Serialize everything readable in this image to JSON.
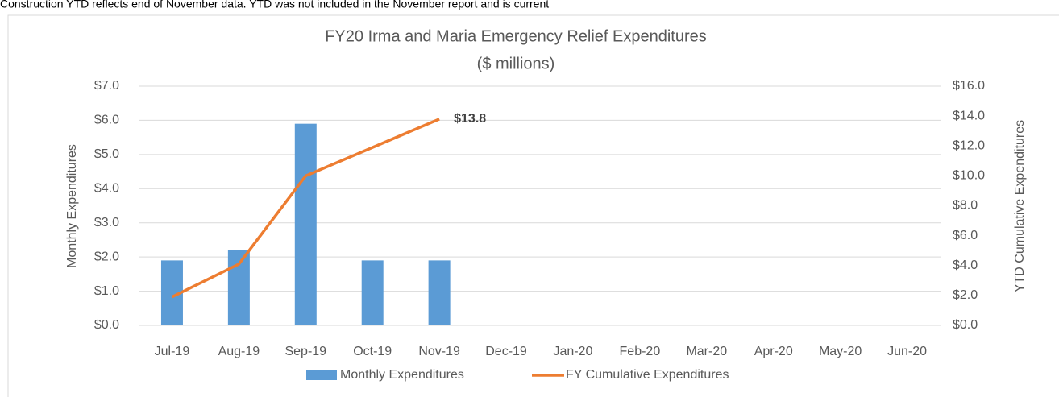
{
  "note": "Construction YTD reflects end of November data. YTD was not included in the November report and is current",
  "chart_data": {
    "type": "bar-line",
    "title": "FY20 Irma and Maria Emergency Relief Expenditures",
    "subtitle": "($ millions)",
    "y_label": "Monthly Expenditures",
    "y2_label": "YTD Cumulative Expenditures",
    "categories": [
      "Jul-19",
      "Aug-19",
      "Sep-19",
      "Oct-19",
      "Nov-19",
      "Dec-19",
      "Jan-20",
      "Feb-20",
      "Mar-20",
      "Apr-20",
      "May-20",
      "Jun-20"
    ],
    "series": [
      {
        "name": "Monthly Expenditures",
        "type": "bar",
        "color": "#5b9bd5",
        "values": [
          1.9,
          2.2,
          5.9,
          1.9,
          1.9,
          null,
          null,
          null,
          null,
          null,
          null,
          null
        ]
      },
      {
        "name": "FY Cumulative Expenditures",
        "type": "line",
        "axis": "y2",
        "color": "#ed7d31",
        "values": [
          1.9,
          4.1,
          10.0,
          11.9,
          13.8,
          null,
          null,
          null,
          null,
          null,
          null,
          null
        ],
        "value_labels": [
          null,
          null,
          null,
          null,
          "$13.8",
          null,
          null,
          null,
          null,
          null,
          null,
          null
        ]
      }
    ],
    "ylim": [
      0,
      7
    ],
    "yticks": [
      {
        "value": 0,
        "label": "$0.0"
      },
      {
        "value": 1,
        "label": "$1.0"
      },
      {
        "value": 2,
        "label": "$2.0"
      },
      {
        "value": 3,
        "label": "$3.0"
      },
      {
        "value": 4,
        "label": "$4.0"
      },
      {
        "value": 5,
        "label": "$5.0"
      },
      {
        "value": 6,
        "label": "$6.0"
      },
      {
        "value": 7,
        "label": "$7.0"
      }
    ],
    "y2lim": [
      0,
      16
    ],
    "y2ticks": [
      {
        "value": 0,
        "label": "$0.0"
      },
      {
        "value": 2,
        "label": "$2.0"
      },
      {
        "value": 4,
        "label": "$4.0"
      },
      {
        "value": 6,
        "label": "$6.0"
      },
      {
        "value": 8,
        "label": "$8.0"
      },
      {
        "value": 10,
        "label": "$10.0"
      },
      {
        "value": 12,
        "label": "$12.0"
      },
      {
        "value": 14,
        "label": "$14.0"
      },
      {
        "value": 16,
        "label": "$16.0"
      }
    ],
    "grid": true,
    "legend": "bottom"
  }
}
